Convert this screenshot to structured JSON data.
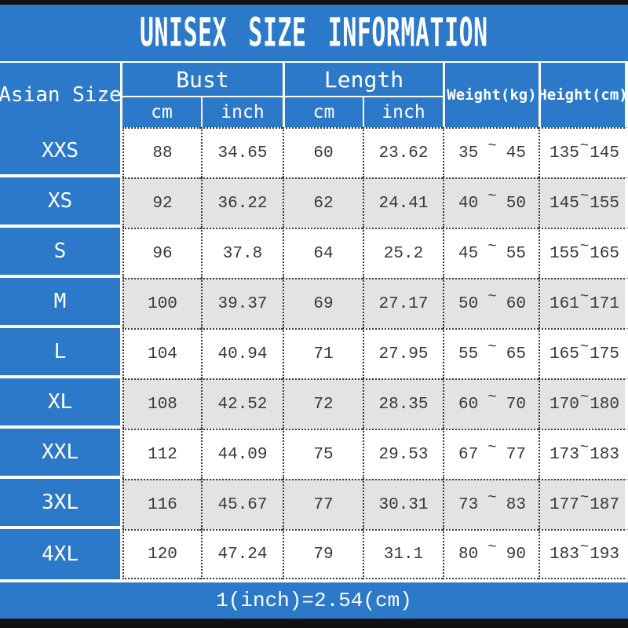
{
  "title": "UNISEX SIZE INFORMATION",
  "header": {
    "col1": "Asian Size",
    "bust": "Bust",
    "length": "Length",
    "cm": "cm",
    "inch": "inch",
    "weight": "Weight(kg)",
    "height": "Height(cm)"
  },
  "tilde": "~",
  "rows": [
    {
      "size": "XXS",
      "bust_cm": "88",
      "bust_inch": "34.65",
      "length_cm": "60",
      "length_inch": "23.62",
      "weight_min": "35",
      "weight_max": "45",
      "height_min": "135",
      "height_max": "145"
    },
    {
      "size": "XS",
      "bust_cm": "92",
      "bust_inch": "36.22",
      "length_cm": "62",
      "length_inch": "24.41",
      "weight_min": "40",
      "weight_max": "50",
      "height_min": "145",
      "height_max": "155"
    },
    {
      "size": "S",
      "bust_cm": "96",
      "bust_inch": "37.8",
      "length_cm": "64",
      "length_inch": "25.2",
      "weight_min": "45",
      "weight_max": "55",
      "height_min": "155",
      "height_max": "165"
    },
    {
      "size": "M",
      "bust_cm": "100",
      "bust_inch": "39.37",
      "length_cm": "69",
      "length_inch": "27.17",
      "weight_min": "50",
      "weight_max": "60",
      "height_min": "161",
      "height_max": "171"
    },
    {
      "size": "L",
      "bust_cm": "104",
      "bust_inch": "40.94",
      "length_cm": "71",
      "length_inch": "27.95",
      "weight_min": "55",
      "weight_max": "65",
      "height_min": "165",
      "height_max": "175"
    },
    {
      "size": "XL",
      "bust_cm": "108",
      "bust_inch": "42.52",
      "length_cm": "72",
      "length_inch": "28.35",
      "weight_min": "60",
      "weight_max": "70",
      "height_min": "170",
      "height_max": "180"
    },
    {
      "size": "XXL",
      "bust_cm": "112",
      "bust_inch": "44.09",
      "length_cm": "75",
      "length_inch": "29.53",
      "weight_min": "67",
      "weight_max": "77",
      "height_min": "173",
      "height_max": "183"
    },
    {
      "size": "3XL",
      "bust_cm": "116",
      "bust_inch": "45.67",
      "length_cm": "77",
      "length_inch": "30.31",
      "weight_min": "73",
      "weight_max": "83",
      "height_min": "177",
      "height_max": "187"
    },
    {
      "size": "4XL",
      "bust_cm": "120",
      "bust_inch": "47.24",
      "length_cm": "79",
      "length_inch": "31.1",
      "weight_min": "80",
      "weight_max": "90",
      "height_min": "183",
      "height_max": "193"
    }
  ],
  "footnote": "1(inch)=2.54(cm)",
  "colors": {
    "accent_blue": "#2b79c8",
    "row_alt_gray": "#e3e3e3",
    "bar_black": "#111111",
    "cell_text": "#383838",
    "header_text": "#ffffff"
  },
  "chart_data": {
    "type": "table",
    "title": "UNISEX SIZE INFORMATION",
    "columns": [
      "Asian Size",
      "Bust (cm)",
      "Bust (inch)",
      "Length (cm)",
      "Length (inch)",
      "Weight (kg)",
      "Height (cm)"
    ],
    "rows": [
      [
        "XXS",
        "88",
        "34.65",
        "60",
        "23.62",
        "35~45",
        "135~145"
      ],
      [
        "XS",
        "92",
        "36.22",
        "62",
        "24.41",
        "40~50",
        "145~155"
      ],
      [
        "S",
        "96",
        "37.8",
        "64",
        "25.2",
        "45~55",
        "155~165"
      ],
      [
        "M",
        "100",
        "39.37",
        "69",
        "27.17",
        "50~60",
        "161~171"
      ],
      [
        "L",
        "104",
        "40.94",
        "71",
        "27.95",
        "55~65",
        "165~175"
      ],
      [
        "XL",
        "108",
        "42.52",
        "72",
        "28.35",
        "60~70",
        "170~180"
      ],
      [
        "XXL",
        "112",
        "44.09",
        "75",
        "29.53",
        "67~77",
        "173~183"
      ],
      [
        "3XL",
        "116",
        "45.67",
        "77",
        "30.31",
        "73~83",
        "177~187"
      ],
      [
        "4XL",
        "120",
        "47.24",
        "79",
        "31.1",
        "80~90",
        "183~193"
      ]
    ],
    "footnote": "1(inch)=2.54(cm)"
  }
}
